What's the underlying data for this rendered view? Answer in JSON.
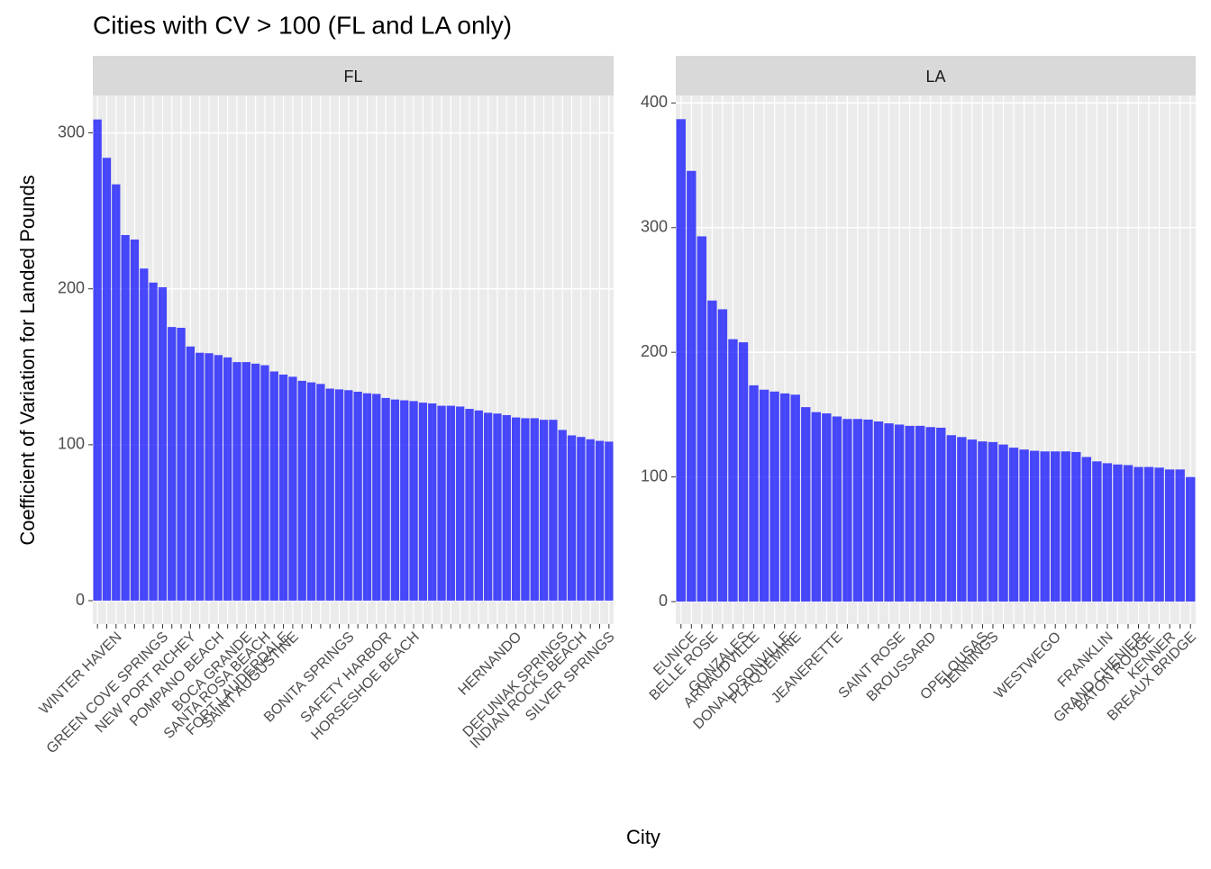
{
  "chart_data": {
    "type": "bar",
    "title": "Cities with CV > 100 (FL and LA only)",
    "x_label": "City",
    "y_label": "Coefficient of Variation for Landed Pounds",
    "color": "#0000ff",
    "grid": true,
    "panels": [
      {
        "name": "FL",
        "ylim": [
          -15,
          324
        ],
        "yticks": [
          0,
          100,
          200,
          300
        ],
        "categories": [
          null,
          null,
          "WINTER HAVEN",
          null,
          null,
          null,
          null,
          "GREEN COVE SPRINGS",
          null,
          null,
          "NEW PORT RICHEY",
          null,
          null,
          "POMPANO BEACH",
          null,
          null,
          "BOCA GRANDE",
          null,
          "SANTA ROSA BEACH",
          null,
          "FORT LAUDERDALE",
          "SAINT AUGUSTINE",
          null,
          null,
          null,
          null,
          null,
          "BONITA SPRINGS",
          null,
          null,
          null,
          "SAFETY HARBOR",
          null,
          null,
          "HORSESHOE BEACH",
          null,
          null,
          null,
          null,
          null,
          null,
          null,
          null,
          null,
          null,
          "HERNANDO",
          null,
          null,
          null,
          null,
          "DEFUNIAK SPRINGS",
          null,
          "INDIAN ROCKS BEACH",
          null,
          null,
          "SILVER SPRINGS"
        ],
        "values": [
          308.6,
          284,
          267,
          234.5,
          231.6,
          213,
          204,
          201,
          175.5,
          175,
          163,
          159,
          158.7,
          157.5,
          156,
          153,
          153,
          152,
          151,
          147,
          145,
          143.6,
          141,
          140,
          139,
          136,
          135.5,
          135,
          134,
          133,
          132.6,
          130,
          129,
          128.5,
          128,
          127,
          126.5,
          125,
          125,
          124.5,
          123,
          122,
          120.5,
          120,
          119,
          117.5,
          117,
          117,
          116,
          116,
          109.5,
          106,
          105,
          103.5,
          102.5,
          102
        ]
      },
      {
        "name": "LA",
        "ylim": [
          -18,
          406
        ],
        "yticks": [
          0,
          100,
          200,
          300,
          400
        ],
        "categories": [
          null,
          "EUNICE",
          null,
          "BELLE ROSE",
          null,
          null,
          "GONZALES",
          "ARNAUDVILLE",
          null,
          null,
          "DONALDSONVILLE",
          "PLAQUEMINE",
          null,
          null,
          null,
          "JEANERETTE",
          null,
          null,
          null,
          null,
          null,
          "SAINT ROSE",
          null,
          null,
          "BROUSSARD",
          null,
          null,
          null,
          null,
          "OPELOUSAS",
          "JENNINGS",
          null,
          null,
          null,
          null,
          null,
          "WESTWEGO",
          null,
          null,
          null,
          null,
          "FRANKLIN",
          null,
          null,
          "GRAND CHENIER",
          "BATON ROUGE",
          null,
          "KENNER",
          null,
          "BREAUX BRIDGE"
        ],
        "values": [
          387,
          345.5,
          293,
          241.5,
          234.5,
          210.5,
          208,
          173.5,
          170,
          168.5,
          167,
          166,
          156,
          152,
          151,
          148.5,
          146.5,
          146.5,
          146,
          144.5,
          143,
          142,
          141,
          141,
          140,
          139.5,
          133.5,
          132,
          130,
          128.5,
          128,
          126,
          123.5,
          122,
          121,
          120.5,
          120.5,
          120.5,
          120,
          116,
          112.5,
          111,
          110,
          109.5,
          108,
          108,
          107.5,
          106,
          106,
          100
        ]
      }
    ]
  }
}
